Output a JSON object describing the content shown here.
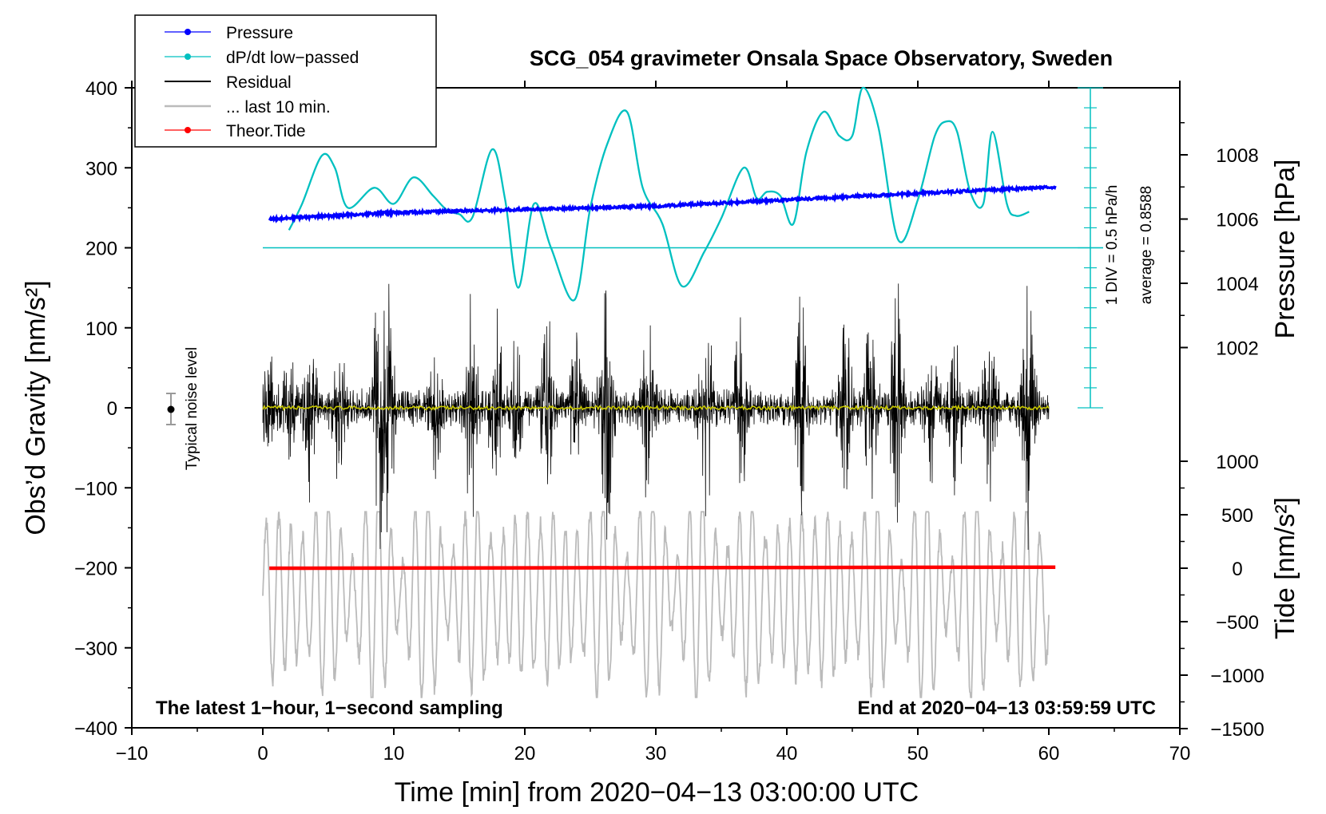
{
  "chart_data": {
    "type": "line",
    "title": "SCG_054 gravimeter Onsala Space Observatory, Sweden",
    "xlabel": "Time [min] from 2020−04−13 03:00:00 UTC",
    "ylabel_left": "Obs’d Gravity [nm/s²]",
    "ylabel_right_pressure": "Pressure [hPa]",
    "ylabel_right_tide": "Tide [nm/s²]",
    "xlim": [
      -10,
      70
    ],
    "ylim": [
      -400,
      400
    ],
    "x_ticks": [
      -10,
      0,
      10,
      20,
      30,
      40,
      50,
      60,
      70
    ],
    "x_tick_labels": [
      "−10",
      "0",
      "10",
      "20",
      "30",
      "40",
      "50",
      "60",
      "70"
    ],
    "y_ticks": [
      400,
      300,
      200,
      100,
      0,
      -100,
      -200,
      -300,
      -400
    ],
    "y_tick_labels": [
      "400",
      "300",
      "200",
      "100",
      "0",
      "−100",
      "−200",
      "−300",
      "−400"
    ],
    "pressure_axis": {
      "ticks": [
        1008,
        1006,
        1004,
        1002
      ],
      "tick_labels": [
        "1008",
        "1006",
        "1004",
        "1002"
      ],
      "range": [
        1000,
        1010
      ]
    },
    "tide_axis": {
      "ticks": [
        1000,
        500,
        0,
        -500,
        -1000,
        -1500
      ],
      "tick_labels": [
        "1000",
        "500",
        "0",
        "−500",
        "−1000",
        "−1500"
      ],
      "range": [
        -1500,
        1000
      ]
    },
    "legend": [
      {
        "label": "Pressure",
        "color": "#0000ff",
        "marker": "dot"
      },
      {
        "label": "dP/dt low−passed",
        "color": "#00c0c0",
        "marker": "dot"
      },
      {
        "label": "Residual",
        "color": "#000000",
        "marker": "line"
      },
      {
        "label": "... last 10 min.",
        "color": "#bbbbbb",
        "marker": "line"
      },
      {
        "label": "Theor.Tide",
        "color": "#ff0000",
        "marker": "dot"
      }
    ],
    "annotations": {
      "left_note": "The latest 1−hour, 1−second sampling",
      "right_note": "End at 2020−04−13 03:59:59 UTC",
      "noise_label": "Typical noise level",
      "scale_div": "1 DIV = 0.5 hPa/h",
      "scale_avg": "average = 0.8588"
    },
    "series": [
      {
        "name": "Pressure",
        "color": "#0000ff",
        "axis": "pressure",
        "x": [
          0.5,
          10,
          20,
          30,
          40,
          50,
          60.5
        ],
        "y": [
          1006.0,
          1006.2,
          1006.3,
          1006.4,
          1006.6,
          1006.8,
          1007.0
        ]
      },
      {
        "name": "dP/dt low-passed",
        "color": "#00c0c0",
        "axis": "gravity",
        "x": [
          2,
          3,
          4.5,
          5.5,
          6.5,
          8.5,
          10,
          11.5,
          13,
          14,
          15,
          16,
          17.5,
          18.5,
          19.5,
          20.7,
          22,
          23.8,
          25,
          26.3,
          27.8,
          29,
          30.5,
          32,
          33.7,
          35,
          36.7,
          37.7,
          38.5,
          39.5,
          40.5,
          41.5,
          42.8,
          44,
          45,
          45.8,
          47,
          48.5,
          50,
          51.3,
          52.2,
          53,
          54,
          55,
          55.7,
          56.8,
          57.5,
          58.5
        ],
        "y": [
          222,
          255,
          315,
          300,
          250,
          275,
          255,
          288,
          265,
          248,
          242,
          238,
          323,
          260,
          150,
          255,
          200,
          135,
          250,
          330,
          370,
          275,
          230,
          152,
          195,
          237,
          300,
          262,
          270,
          265,
          230,
          320,
          370,
          340,
          340,
          400,
          350,
          210,
          260,
          340,
          358,
          345,
          270,
          255,
          345,
          255,
          240,
          245
        ]
      },
      {
        "name": "Residual",
        "color": "#000000",
        "axis": "gravity",
        "x_range": [
          0,
          60
        ],
        "amplitude": [
          -160,
          190
        ]
      },
      {
        "name": "... last 10 min.",
        "color": "#bbbbbb",
        "axis": "gravity",
        "x_range": [
          0,
          60
        ],
        "amplitude": [
          -360,
          -130
        ]
      },
      {
        "name": "Theor.Tide",
        "color": "#ff0000",
        "axis": "tide",
        "x": [
          0.5,
          60.5
        ],
        "y": [
          0,
          10
        ]
      },
      {
        "name": "Low-passed residual",
        "color": "#c8c800",
        "axis": "gravity",
        "x": [
          0,
          60
        ],
        "y": [
          0,
          0
        ]
      }
    ]
  }
}
